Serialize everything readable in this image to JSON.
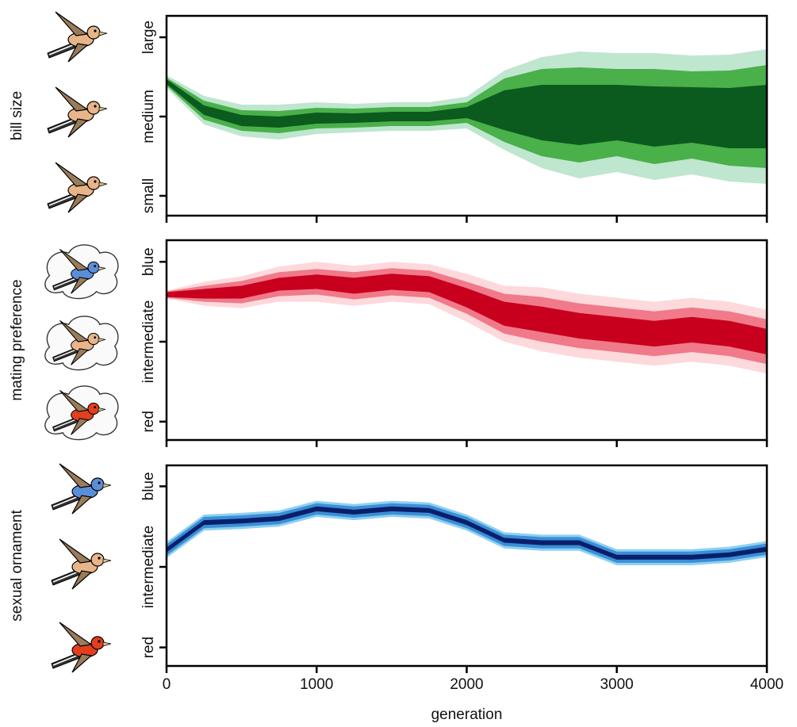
{
  "chart_data": [
    {
      "type": "band",
      "ylabel": "bill size",
      "x": [
        0,
        250,
        500,
        750,
        1000,
        1250,
        1500,
        1750,
        2000,
        2250,
        2500,
        2750,
        3000,
        3250,
        3500,
        3750,
        4000
      ],
      "ylim": [
        -1.25,
        1.27
      ],
      "yticks": [
        {
          "value": -1,
          "label": "small"
        },
        {
          "value": 0,
          "label": "medium"
        },
        {
          "value": 1,
          "label": "large"
        }
      ],
      "bands": [
        {
          "color": "#bfe6cf",
          "lower": [
            0.36,
            -0.1,
            -0.25,
            -0.29,
            -0.22,
            -0.2,
            -0.18,
            -0.18,
            -0.15,
            -0.42,
            -0.65,
            -0.78,
            -0.7,
            -0.8,
            -0.73,
            -0.82,
            -0.85
          ],
          "upper": [
            0.52,
            0.26,
            0.15,
            0.15,
            0.18,
            0.16,
            0.18,
            0.18,
            0.25,
            0.58,
            0.75,
            0.82,
            0.8,
            0.8,
            0.77,
            0.78,
            0.85
          ]
        },
        {
          "color": "#49b04a",
          "lower": [
            0.39,
            -0.04,
            -0.18,
            -0.21,
            -0.15,
            -0.14,
            -0.12,
            -0.12,
            -0.08,
            -0.32,
            -0.5,
            -0.58,
            -0.5,
            -0.6,
            -0.53,
            -0.62,
            -0.65
          ],
          "upper": [
            0.49,
            0.2,
            0.08,
            0.07,
            0.11,
            0.1,
            0.12,
            0.12,
            0.18,
            0.48,
            0.6,
            0.62,
            0.6,
            0.6,
            0.57,
            0.58,
            0.65
          ]
        },
        {
          "color": "#0b5a1e",
          "lower": [
            0.41,
            0.02,
            -0.12,
            -0.14,
            -0.09,
            -0.08,
            -0.06,
            -0.06,
            -0.02,
            -0.17,
            -0.3,
            -0.36,
            -0.3,
            -0.38,
            -0.33,
            -0.4,
            -0.4
          ],
          "upper": [
            0.47,
            0.14,
            0.02,
            0.0,
            0.05,
            0.04,
            0.06,
            0.06,
            0.12,
            0.33,
            0.4,
            0.4,
            0.4,
            0.38,
            0.37,
            0.36,
            0.4
          ]
        }
      ]
    },
    {
      "type": "band",
      "ylabel": "mating preference",
      "x": [
        0,
        250,
        500,
        750,
        1000,
        1250,
        1500,
        1750,
        2000,
        2250,
        2500,
        2750,
        3000,
        3250,
        3500,
        3750,
        4000
      ],
      "ylim": [
        -1.23,
        1.27
      ],
      "yticks": [
        {
          "value": -1,
          "label": "red"
        },
        {
          "value": 0,
          "label": "intermediate"
        },
        {
          "value": 1,
          "label": "blue"
        }
      ],
      "bands": [
        {
          "color": "#fdd9dc",
          "lower": [
            0.54,
            0.45,
            0.42,
            0.5,
            0.5,
            0.45,
            0.5,
            0.47,
            0.25,
            0.0,
            -0.12,
            -0.2,
            -0.25,
            -0.3,
            -0.25,
            -0.3,
            -0.4
          ],
          "upper": [
            0.64,
            0.75,
            0.82,
            0.94,
            1.0,
            0.95,
            1.0,
            0.97,
            0.85,
            0.7,
            0.68,
            0.6,
            0.55,
            0.5,
            0.55,
            0.5,
            0.4
          ]
        },
        {
          "color": "#f07a8a",
          "lower": [
            0.55,
            0.5,
            0.48,
            0.57,
            0.59,
            0.53,
            0.58,
            0.55,
            0.35,
            0.1,
            0.0,
            -0.08,
            -0.13,
            -0.18,
            -0.13,
            -0.18,
            -0.28
          ],
          "upper": [
            0.63,
            0.7,
            0.76,
            0.87,
            0.91,
            0.87,
            0.92,
            0.89,
            0.75,
            0.6,
            0.56,
            0.48,
            0.43,
            0.38,
            0.43,
            0.38,
            0.28
          ]
        },
        {
          "color": "#c8001e",
          "lower": [
            0.56,
            0.54,
            0.54,
            0.64,
            0.66,
            0.6,
            0.65,
            0.62,
            0.43,
            0.2,
            0.12,
            0.04,
            -0.01,
            -0.06,
            -0.01,
            -0.06,
            -0.16
          ],
          "upper": [
            0.62,
            0.66,
            0.7,
            0.8,
            0.84,
            0.8,
            0.85,
            0.82,
            0.67,
            0.5,
            0.44,
            0.36,
            0.31,
            0.26,
            0.31,
            0.26,
            0.16
          ]
        }
      ]
    },
    {
      "type": "band",
      "ylabel": "sexual ornament",
      "xlabel": "generation",
      "x": [
        0,
        250,
        500,
        750,
        1000,
        1250,
        1500,
        1750,
        2000,
        2250,
        2500,
        2750,
        3000,
        3250,
        3500,
        3750,
        4000
      ],
      "xlim": [
        0,
        4000
      ],
      "xticks": [
        0,
        1000,
        2000,
        3000,
        4000
      ],
      "ylim": [
        -1.23,
        1.26
      ],
      "yticks": [
        {
          "value": -1,
          "label": "red"
        },
        {
          "value": 0,
          "label": "intermediate"
        },
        {
          "value": 1,
          "label": "blue"
        }
      ],
      "bands": [
        {
          "color": "#8fd0f2",
          "lower": [
            0.11,
            0.45,
            0.47,
            0.5,
            0.62,
            0.58,
            0.62,
            0.6,
            0.45,
            0.23,
            0.2,
            0.2,
            0.02,
            0.02,
            0.02,
            0.05,
            0.12
          ],
          "upper": [
            0.31,
            0.65,
            0.67,
            0.7,
            0.82,
            0.78,
            0.82,
            0.8,
            0.65,
            0.43,
            0.4,
            0.4,
            0.22,
            0.22,
            0.22,
            0.25,
            0.32
          ]
        },
        {
          "color": "#3a8fd6",
          "lower": [
            0.14,
            0.48,
            0.5,
            0.53,
            0.65,
            0.61,
            0.65,
            0.63,
            0.48,
            0.26,
            0.23,
            0.23,
            0.05,
            0.05,
            0.05,
            0.08,
            0.15
          ],
          "upper": [
            0.28,
            0.62,
            0.64,
            0.67,
            0.79,
            0.75,
            0.79,
            0.77,
            0.62,
            0.4,
            0.37,
            0.37,
            0.19,
            0.19,
            0.19,
            0.22,
            0.29
          ]
        },
        {
          "color": "#0a1f6b",
          "lower": [
            0.18,
            0.52,
            0.54,
            0.57,
            0.69,
            0.65,
            0.69,
            0.67,
            0.52,
            0.3,
            0.27,
            0.27,
            0.09,
            0.09,
            0.09,
            0.12,
            0.19
          ],
          "upper": [
            0.24,
            0.58,
            0.6,
            0.63,
            0.75,
            0.71,
            0.75,
            0.73,
            0.58,
            0.36,
            0.33,
            0.33,
            0.15,
            0.15,
            0.15,
            0.18,
            0.25
          ]
        }
      ]
    }
  ]
}
